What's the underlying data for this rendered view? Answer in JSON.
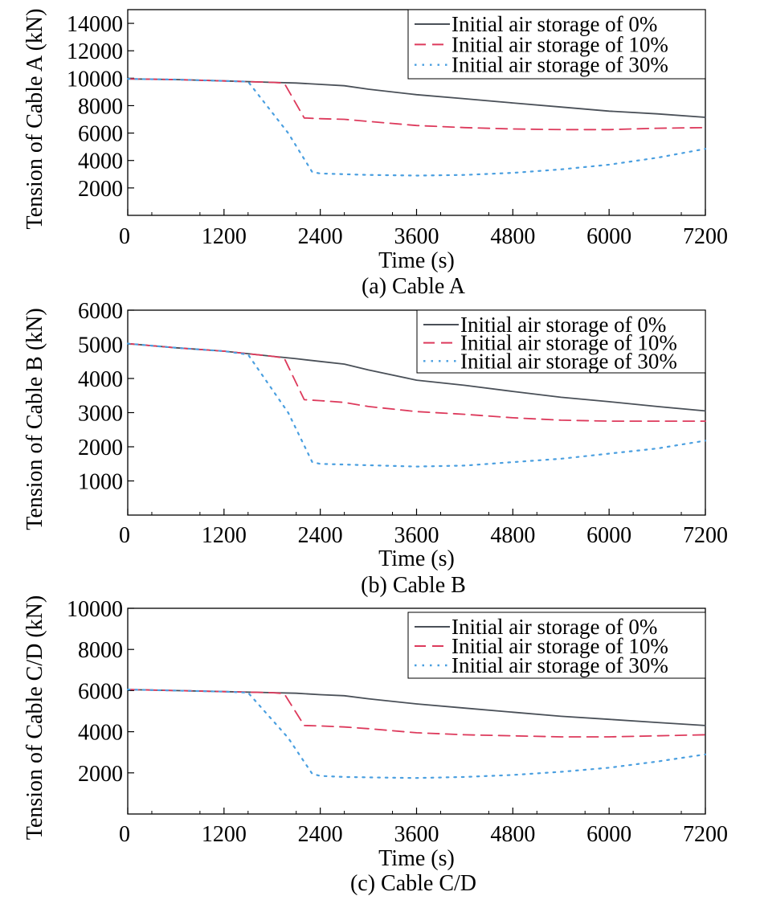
{
  "colors": {
    "series_0": "#4a5058",
    "series_10": "#dd3a5c",
    "series_30": "#4a9fe0",
    "axis": "#000000",
    "background": "#ffffff"
  },
  "chart_data": [
    {
      "type": "line",
      "caption": "(a) Cable A",
      "xlabel": "Time (s)",
      "ylabel": "Tension of Cable A (kN)",
      "xlim": [
        0,
        7200
      ],
      "ylim": [
        0,
        15000
      ],
      "xticks": [
        0,
        1200,
        2400,
        3600,
        4800,
        6000,
        7200
      ],
      "yticks": [
        2000,
        4000,
        6000,
        8000,
        10000,
        12000,
        14000
      ],
      "legend_position": "top-right",
      "grid": false,
      "series": [
        {
          "name": "Initial air storage of 0%",
          "style": "solid",
          "x": [
            0,
            600,
            1200,
            1800,
            2100,
            2400,
            2700,
            3000,
            3600,
            4200,
            4800,
            5400,
            6000,
            6600,
            7200
          ],
          "y": [
            9950,
            9900,
            9800,
            9700,
            9650,
            9550,
            9450,
            9200,
            8800,
            8500,
            8200,
            7900,
            7600,
            7400,
            7150
          ]
        },
        {
          "name": "Initial air storage of 10%",
          "style": "dashed",
          "x": [
            0,
            600,
            1200,
            1800,
            1950,
            2200,
            2400,
            2700,
            3000,
            3600,
            4200,
            4800,
            5400,
            6000,
            6600,
            7200
          ],
          "y": [
            9950,
            9900,
            9800,
            9700,
            9650,
            7100,
            7050,
            7000,
            6850,
            6550,
            6400,
            6300,
            6250,
            6250,
            6350,
            6400
          ]
        },
        {
          "name": "Initial air storage of 30%",
          "style": "dotted",
          "x": [
            0,
            600,
            1200,
            1500,
            2000,
            2300,
            2400,
            2700,
            3000,
            3600,
            4200,
            4800,
            5400,
            6000,
            6600,
            7200
          ],
          "y": [
            9950,
            9900,
            9800,
            9750,
            6000,
            3150,
            3050,
            3000,
            2950,
            2900,
            2950,
            3100,
            3350,
            3700,
            4200,
            4850
          ]
        }
      ]
    },
    {
      "type": "line",
      "caption": "(b) Cable B",
      "xlabel": "Time (s)",
      "ylabel": "Tension of Cable B (kN)",
      "xlim": [
        0,
        7200
      ],
      "ylim": [
        0,
        6000
      ],
      "xticks": [
        0,
        1200,
        2400,
        3600,
        4800,
        6000,
        7200
      ],
      "yticks": [
        1000,
        2000,
        3000,
        4000,
        5000,
        6000
      ],
      "legend_position": "top-right",
      "grid": false,
      "series": [
        {
          "name": "Initial air storage of 0%",
          "style": "solid",
          "x": [
            0,
            600,
            1200,
            1800,
            2100,
            2400,
            2700,
            3000,
            3600,
            4200,
            4800,
            5400,
            6000,
            6600,
            7200
          ],
          "y": [
            5020,
            4900,
            4800,
            4650,
            4580,
            4500,
            4420,
            4250,
            3950,
            3800,
            3620,
            3450,
            3320,
            3180,
            3050
          ]
        },
        {
          "name": "Initial air storage of 10%",
          "style": "dashed",
          "x": [
            0,
            600,
            1200,
            1800,
            1950,
            2200,
            2400,
            2700,
            3000,
            3600,
            4200,
            4800,
            5400,
            6000,
            6600,
            7200
          ],
          "y": [
            5020,
            4900,
            4800,
            4650,
            4600,
            3380,
            3350,
            3300,
            3180,
            3030,
            2950,
            2850,
            2780,
            2750,
            2750,
            2750
          ]
        },
        {
          "name": "Initial air storage of 30%",
          "style": "dotted",
          "x": [
            0,
            600,
            1200,
            1500,
            2000,
            2300,
            2400,
            2700,
            3000,
            3600,
            4200,
            4800,
            5400,
            6000,
            6600,
            7200
          ],
          "y": [
            5020,
            4900,
            4800,
            4700,
            3000,
            1550,
            1500,
            1480,
            1460,
            1420,
            1450,
            1550,
            1650,
            1800,
            1950,
            2180
          ]
        }
      ]
    },
    {
      "type": "line",
      "caption": "(c) Cable C/D",
      "xlabel": "Time (s)",
      "ylabel": "Tension of Cable C/D (kN)",
      "xlim": [
        0,
        7200
      ],
      "ylim": [
        0,
        10000
      ],
      "xticks": [
        0,
        1200,
        2400,
        3600,
        4800,
        6000,
        7200
      ],
      "yticks": [
        2000,
        4000,
        6000,
        8000,
        10000
      ],
      "legend_position": "top-right",
      "grid": false,
      "series": [
        {
          "name": "Initial air storage of 0%",
          "style": "solid",
          "x": [
            0,
            600,
            1200,
            1800,
            2100,
            2400,
            2700,
            3000,
            3600,
            4200,
            4800,
            5400,
            6000,
            6600,
            7200
          ],
          "y": [
            6050,
            6000,
            5950,
            5900,
            5870,
            5800,
            5750,
            5600,
            5350,
            5150,
            4950,
            4750,
            4600,
            4450,
            4300
          ]
        },
        {
          "name": "Initial air storage of 10%",
          "style": "dashed",
          "x": [
            0,
            600,
            1200,
            1800,
            1950,
            2200,
            2400,
            2700,
            3000,
            3600,
            4200,
            4800,
            5400,
            6000,
            6600,
            7200
          ],
          "y": [
            6050,
            6000,
            5950,
            5900,
            5850,
            4300,
            4280,
            4230,
            4150,
            3950,
            3850,
            3800,
            3750,
            3750,
            3800,
            3850
          ]
        },
        {
          "name": "Initial air storage of 30%",
          "style": "dotted",
          "x": [
            0,
            600,
            1200,
            1500,
            2000,
            2300,
            2400,
            2700,
            3000,
            3600,
            4200,
            4800,
            5400,
            6000,
            6600,
            7200
          ],
          "y": [
            6050,
            6000,
            5950,
            5900,
            3700,
            1950,
            1850,
            1800,
            1780,
            1750,
            1800,
            1900,
            2050,
            2250,
            2550,
            2900
          ]
        }
      ]
    }
  ]
}
